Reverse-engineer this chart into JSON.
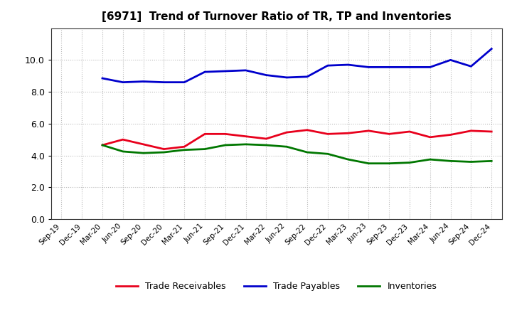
{
  "title": "[6971]  Trend of Turnover Ratio of TR, TP and Inventories",
  "x_labels": [
    "Sep-19",
    "Dec-19",
    "Mar-20",
    "Jun-20",
    "Sep-20",
    "Dec-20",
    "Mar-21",
    "Jun-21",
    "Sep-21",
    "Dec-21",
    "Mar-22",
    "Jun-22",
    "Sep-22",
    "Dec-22",
    "Mar-23",
    "Jun-23",
    "Sep-23",
    "Dec-23",
    "Mar-24",
    "Jun-24",
    "Sep-24",
    "Dec-24"
  ],
  "trade_receivables": [
    null,
    null,
    4.65,
    5.0,
    4.7,
    4.4,
    4.55,
    5.35,
    5.35,
    5.2,
    5.05,
    5.45,
    5.6,
    5.35,
    5.4,
    5.55,
    5.35,
    5.5,
    5.15,
    5.3,
    5.55,
    5.5
  ],
  "trade_payables": [
    null,
    null,
    8.85,
    8.6,
    8.65,
    8.6,
    8.6,
    9.25,
    9.3,
    9.35,
    9.05,
    8.9,
    8.95,
    9.65,
    9.7,
    9.55,
    9.55,
    9.55,
    9.55,
    10.0,
    9.6,
    10.7
  ],
  "inventories": [
    null,
    null,
    4.65,
    4.25,
    4.15,
    4.2,
    4.35,
    4.4,
    4.65,
    4.7,
    4.65,
    4.55,
    4.2,
    4.1,
    3.75,
    3.5,
    3.5,
    3.55,
    3.75,
    3.65,
    3.6,
    3.65
  ],
  "ylim": [
    0,
    12
  ],
  "yticks": [
    0.0,
    2.0,
    4.0,
    6.0,
    8.0,
    10.0
  ],
  "color_tr": "#e8001c",
  "color_tp": "#0000cc",
  "color_inv": "#007700",
  "legend_labels": [
    "Trade Receivables",
    "Trade Payables",
    "Inventories"
  ],
  "background_color": "#ffffff",
  "grid_color": "#bbbbbb"
}
